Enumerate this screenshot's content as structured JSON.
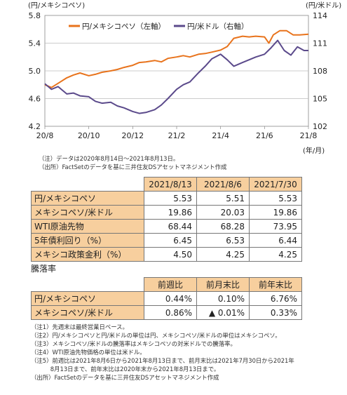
{
  "chart_data": {
    "type": "line",
    "left_axis_label": "(円/メキシコペソ)",
    "right_axis_label": "(円/米ドル)",
    "x_unit_label": "(年/月)",
    "x_ticks": [
      "20/8",
      "20/10",
      "20/12",
      "21/2",
      "21/4",
      "21/6",
      "21/8"
    ],
    "left_ticks": [
      "5.8",
      "5.4",
      "5.0",
      "4.6",
      "4.2"
    ],
    "right_ticks": [
      "114",
      "111",
      "108",
      "105",
      "102"
    ],
    "left_range": [
      4.2,
      5.8
    ],
    "right_range": [
      102,
      114
    ],
    "x_range": [
      0,
      12
    ],
    "series": [
      {
        "name": "円/メキシコペソ（左軸）",
        "axis": "left",
        "color": "#e8731c",
        "points": [
          [
            0,
            4.8
          ],
          [
            0.3,
            4.76
          ],
          [
            0.6,
            4.82
          ],
          [
            1,
            4.9
          ],
          [
            1.3,
            4.94
          ],
          [
            1.6,
            4.97
          ],
          [
            2,
            4.93
          ],
          [
            2.3,
            4.95
          ],
          [
            2.6,
            4.98
          ],
          [
            3,
            5.0
          ],
          [
            3.3,
            5.02
          ],
          [
            3.6,
            5.05
          ],
          [
            4,
            5.08
          ],
          [
            4.3,
            5.12
          ],
          [
            4.6,
            5.13
          ],
          [
            5,
            5.15
          ],
          [
            5.3,
            5.13
          ],
          [
            5.6,
            5.18
          ],
          [
            6,
            5.2
          ],
          [
            6.3,
            5.22
          ],
          [
            6.6,
            5.2
          ],
          [
            7,
            5.24
          ],
          [
            7.3,
            5.25
          ],
          [
            7.6,
            5.27
          ],
          [
            8,
            5.3
          ],
          [
            8.3,
            5.35
          ],
          [
            8.6,
            5.47
          ],
          [
            9,
            5.5
          ],
          [
            9.3,
            5.49
          ],
          [
            9.6,
            5.5
          ],
          [
            10,
            5.49
          ],
          [
            10.2,
            5.4
          ],
          [
            10.4,
            5.52
          ],
          [
            10.7,
            5.58
          ],
          [
            11,
            5.58
          ],
          [
            11.3,
            5.52
          ],
          [
            11.6,
            5.52
          ],
          [
            12,
            5.53
          ]
        ]
      },
      {
        "name": "円/米ドル（右軸）",
        "axis": "right",
        "color": "#5b4a8b",
        "points": [
          [
            0,
            106.6
          ],
          [
            0.3,
            106.0
          ],
          [
            0.6,
            106.3
          ],
          [
            1,
            105.5
          ],
          [
            1.3,
            105.6
          ],
          [
            1.6,
            105.3
          ],
          [
            2,
            105.2
          ],
          [
            2.3,
            104.7
          ],
          [
            2.6,
            104.5
          ],
          [
            3,
            104.6
          ],
          [
            3.3,
            104.2
          ],
          [
            3.6,
            104.0
          ],
          [
            4,
            103.6
          ],
          [
            4.3,
            103.4
          ],
          [
            4.6,
            103.5
          ],
          [
            5,
            103.8
          ],
          [
            5.3,
            104.3
          ],
          [
            5.6,
            105.0
          ],
          [
            6,
            106.0
          ],
          [
            6.3,
            106.5
          ],
          [
            6.6,
            106.8
          ],
          [
            7,
            107.8
          ],
          [
            7.3,
            108.5
          ],
          [
            7.6,
            109.3
          ],
          [
            8,
            109.8
          ],
          [
            8.3,
            109.2
          ],
          [
            8.6,
            108.5
          ],
          [
            9,
            108.9
          ],
          [
            9.3,
            109.2
          ],
          [
            9.6,
            109.5
          ],
          [
            10,
            109.8
          ],
          [
            10.3,
            110.5
          ],
          [
            10.6,
            111.3
          ],
          [
            10.9,
            110.2
          ],
          [
            11.2,
            109.7
          ],
          [
            11.5,
            110.6
          ],
          [
            11.8,
            110.2
          ],
          [
            12,
            110.2
          ]
        ]
      }
    ],
    "grid": "horizontal"
  },
  "notes_top": [
    "（注）データは2020年8月14日～2021年8月13日。",
    "（出所）FactSetのデータを基に三井住友DSアセットマネジメント作成"
  ],
  "table1": {
    "headers": [
      "2021/8/13",
      "2021/8/6",
      "2021/7/30"
    ],
    "rows": [
      {
        "label": "円/メキシコペソ",
        "values": [
          "5.53",
          "5.51",
          "5.53"
        ]
      },
      {
        "label": "メキシコペソ/米ドル",
        "values": [
          "19.86",
          "20.03",
          "19.86"
        ]
      },
      {
        "label": "WTI原油先物",
        "values": [
          "68.44",
          "68.28",
          "73.95"
        ]
      },
      {
        "label": "5年債利回り（%）",
        "values": [
          "6.45",
          "6.53",
          "6.44"
        ]
      },
      {
        "label": "メキシコ政策金利（%）",
        "values": [
          "4.50",
          "4.25",
          "4.25"
        ]
      }
    ]
  },
  "rate_title": "騰落率",
  "table2": {
    "headers": [
      "前週比",
      "前月末比",
      "前年末比"
    ],
    "rows": [
      {
        "label": "円/メキシコペソ",
        "values": [
          "0.44%",
          "0.10%",
          "6.76%"
        ]
      },
      {
        "label": "メキシコペソ/米ドル",
        "values": [
          "0.86%",
          "▲ 0.01%",
          "0.33%"
        ]
      }
    ]
  },
  "notes_bottom": [
    "（注1）先週末は最終営業日ベース。",
    "（注2）円/メキシコペソと円/米ドルの単位は円、メキシコペソ/米ドルの単位はメキシコペソ。",
    "（注3）メキシコペソ/米ドルの騰落率はメキシコペソの対米ドルでの騰落率。",
    "（注4）WTI原油先物価格の単位は米ドル。",
    "（注5）前週比は2021年8月6日から2021年8月13日まで、前月末比は2021年7月30日から2021年",
    "　　　 8月13日まで、前年末比は2020年末から2021年8月13日まで。",
    "（出所）FactSetのデータを基に三井住友DSアセットマネジメント作成"
  ]
}
